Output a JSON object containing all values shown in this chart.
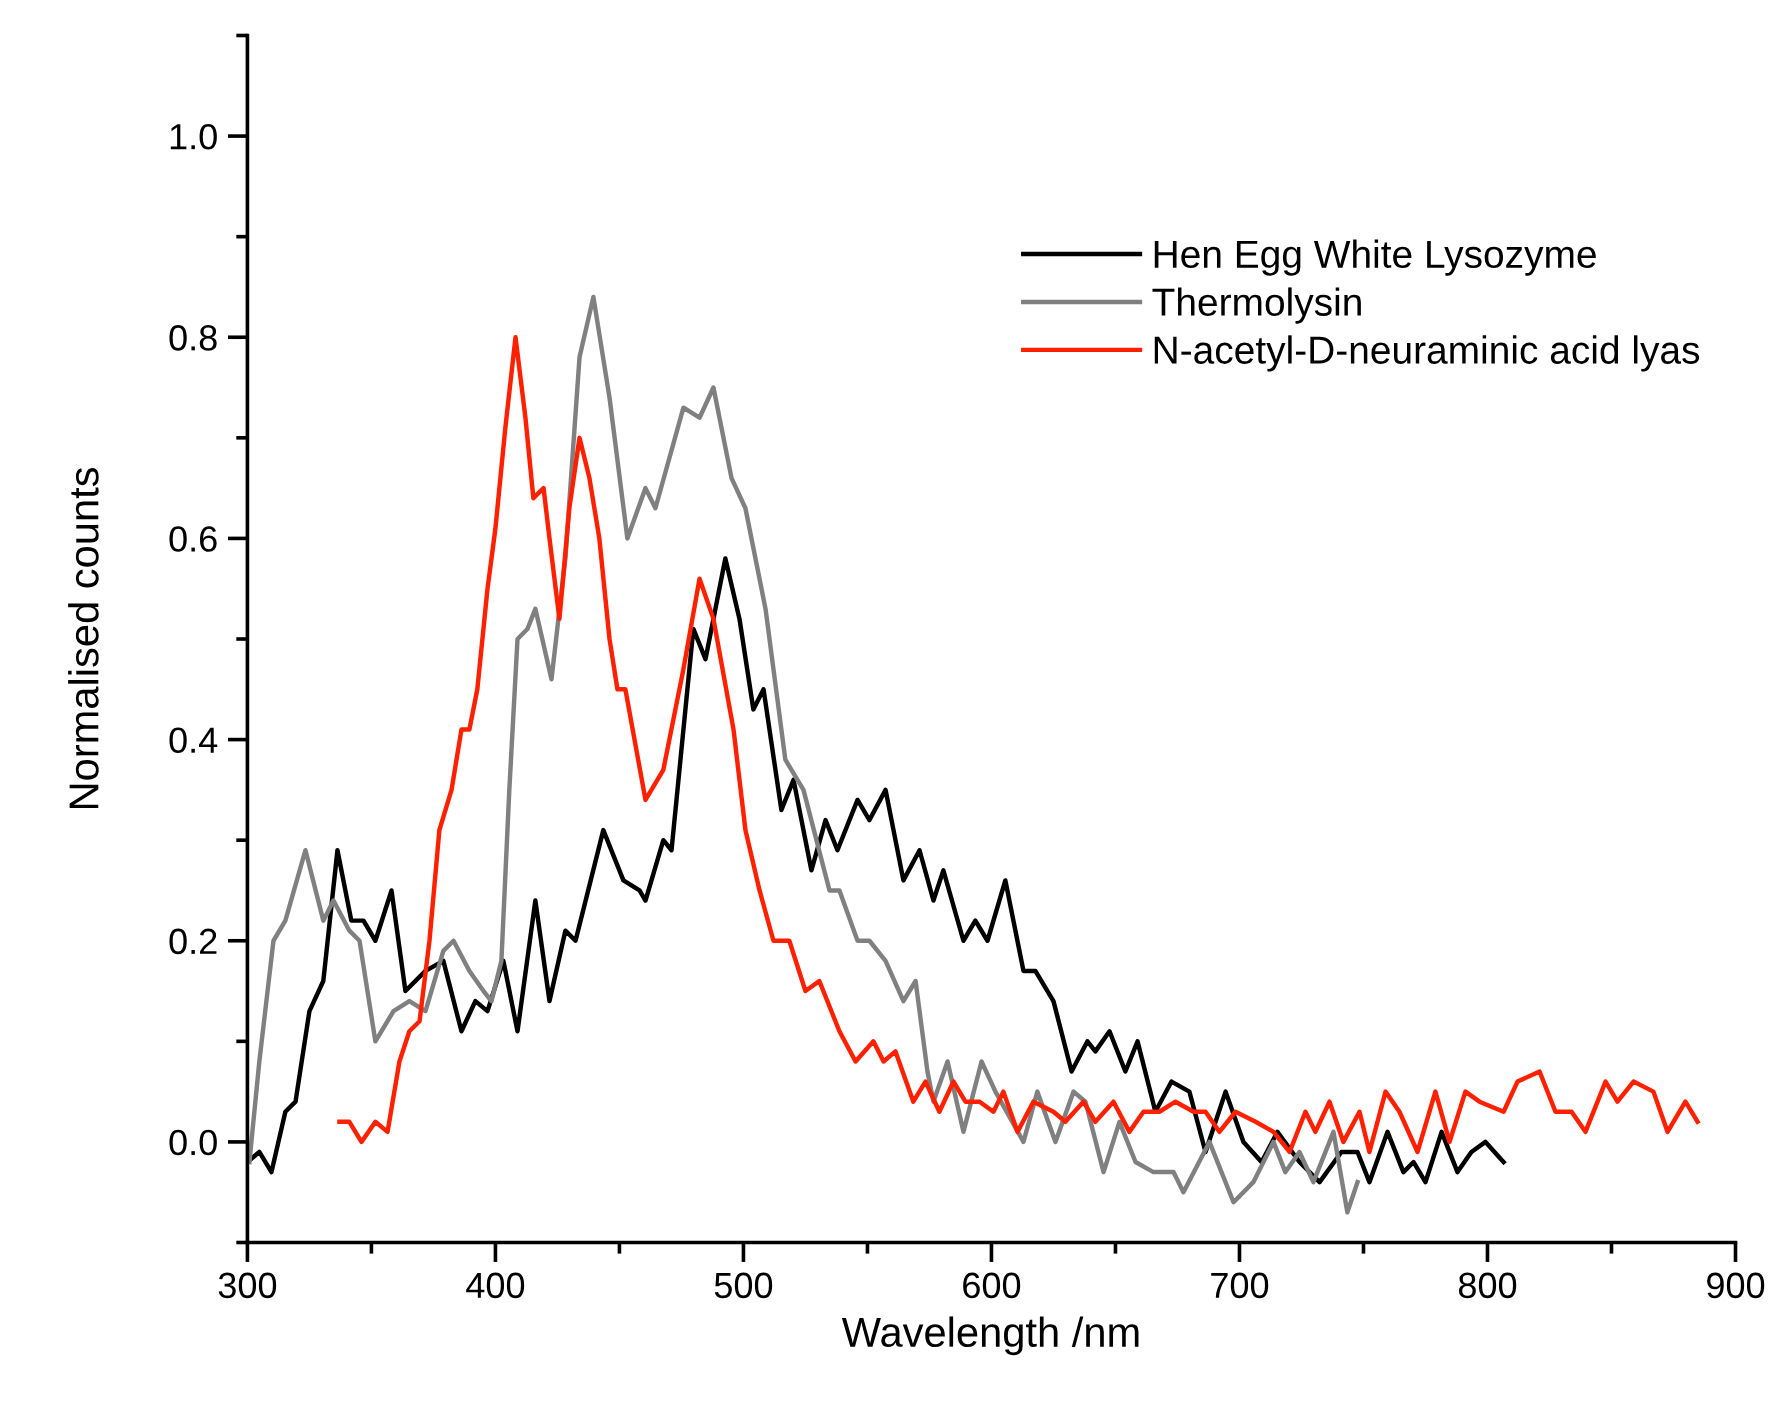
{
  "chart_data": {
    "type": "line",
    "xlabel": "Wavelength /nm",
    "ylabel": "Normalised counts",
    "xlim": [
      300,
      900
    ],
    "ylim": [
      -0.1,
      1.1
    ],
    "xticks": [
      300,
      {
        "value": 350,
        "label": null
      },
      400,
      {
        "value": 450,
        "label": null
      },
      500,
      {
        "value": 550,
        "label": null
      },
      600,
      {
        "value": 650,
        "label": null
      },
      700,
      {
        "value": 750,
        "label": null
      },
      800,
      {
        "value": 850,
        "label": null
      },
      900
    ],
    "yticks": [
      {
        "value": -0.1,
        "label": null
      },
      {
        "value": 0,
        "label": "0.0"
      },
      {
        "value": 0.1,
        "label": null
      },
      {
        "value": 0.2,
        "label": "0.2"
      },
      {
        "value": 0.3,
        "label": null
      },
      {
        "value": 0.4,
        "label": "0.4"
      },
      {
        "value": 0.5,
        "label": null
      },
      {
        "value": 0.6,
        "label": "0.6"
      },
      {
        "value": 0.7,
        "label": null
      },
      {
        "value": 0.8,
        "label": "0.8"
      },
      {
        "value": 0.9,
        "label": null
      },
      {
        "value": 1.0,
        "label": "1.0"
      },
      {
        "value": 1.1,
        "label": null
      }
    ],
    "grid": false,
    "legend": "top right",
    "marker": "none",
    "line_style": "solid",
    "series": [
      {
        "name": "Hen Egg White Lysozyme",
        "color": "#000000",
        "x": [
          300,
          304.8,
          309.7,
          315.3,
          319.4,
          325,
          330.6,
          336.3,
          341.9,
          346.8,
          351.6,
          358.1,
          363.7,
          371.8,
          379,
          386.3,
          391.9,
          396.8,
          403.2,
          408.9,
          416.1,
          421.8,
          428.2,
          432.3,
          443.5,
          451.6,
          458.1,
          460.5,
          467.7,
          471,
          479.8,
          484.7,
          492.7,
          498.4,
          504,
          508.1,
          515.3,
          520.2,
          527.4,
          533.1,
          537.9,
          546,
          550.8,
          557.3,
          564.5,
          571,
          576.6,
          580.6,
          588.7,
          593.5,
          598.4,
          605.6,
          612.9,
          617.7,
          625,
          632.3,
          638.7,
          641.9,
          647.6,
          654,
          658.9,
          666.1,
          672.6,
          679.8,
          686.3,
          694.4,
          701.6,
          708.9,
          715.3,
          724.2,
          732.3,
          741.1,
          747.6,
          752.4,
          759.7,
          766.1,
          770.2,
          775,
          781.5,
          787.9,
          793.5,
          799.2,
          806.5
        ],
        "values": [
          -0.02,
          -0.01,
          -0.03,
          0.03,
          0.04,
          0.13,
          0.16,
          0.29,
          0.22,
          0.22,
          0.2,
          0.25,
          0.15,
          0.17,
          0.18,
          0.11,
          0.14,
          0.13,
          0.18,
          0.11,
          0.24,
          0.14,
          0.21,
          0.2,
          0.31,
          0.26,
          0.25,
          0.24,
          0.3,
          0.29,
          0.51,
          0.48,
          0.58,
          0.52,
          0.43,
          0.45,
          0.33,
          0.36,
          0.27,
          0.32,
          0.29,
          0.34,
          0.32,
          0.35,
          0.26,
          0.29,
          0.24,
          0.27,
          0.2,
          0.22,
          0.2,
          0.26,
          0.17,
          0.17,
          0.14,
          0.07,
          0.1,
          0.09,
          0.11,
          0.07,
          0.1,
          0.03,
          0.06,
          0.05,
          -0.01,
          0.05,
          0.0,
          -0.02,
          0.01,
          -0.02,
          -0.04,
          -0.01,
          -0.01,
          -0.04,
          0.01,
          -0.03,
          -0.02,
          -0.04,
          0.01,
          -0.03,
          -0.01,
          0.0,
          -0.02
        ]
      },
      {
        "name": "Thermolysin",
        "color": "#808080",
        "x": [
          300.8,
          304.8,
          310.5,
          315.3,
          323.4,
          330.6,
          334.7,
          341.1,
          345.2,
          351.6,
          358.9,
          365.3,
          371.8,
          379,
          383.1,
          389.5,
          395.2,
          398.4,
          402.4,
          405.6,
          408.9,
          412.9,
          416.1,
          422.6,
          428.2,
          433.9,
          439.5,
          446,
          453.2,
          460.5,
          464.5,
          475.8,
          482.3,
          487.9,
          495.2,
          500.8,
          508.9,
          516.9,
          524.2,
          534.7,
          538.7,
          546,
          550.8,
          557.3,
          564.5,
          569.4,
          574.2,
          576.6,
          582.3,
          588.7,
          596,
          601.6,
          612.9,
          618.5,
          625.8,
          633.1,
          637.9,
          645.2,
          651.6,
          658.1,
          665.3,
          673.4,
          677.4,
          687.9,
          697.6,
          705.6,
          713.7,
          718.5,
          724.2,
          729.8,
          737.9,
          743.5,
          747.6
        ],
        "values": [
          -0.02,
          0.08,
          0.2,
          0.22,
          0.29,
          0.22,
          0.24,
          0.21,
          0.2,
          0.1,
          0.13,
          0.14,
          0.13,
          0.19,
          0.2,
          0.17,
          0.15,
          0.14,
          0.18,
          0.35,
          0.5,
          0.51,
          0.53,
          0.46,
          0.58,
          0.78,
          0.84,
          0.74,
          0.6,
          0.65,
          0.63,
          0.73,
          0.72,
          0.75,
          0.66,
          0.63,
          0.53,
          0.38,
          0.35,
          0.25,
          0.25,
          0.2,
          0.2,
          0.18,
          0.14,
          0.16,
          0.07,
          0.04,
          0.08,
          0.01,
          0.08,
          0.05,
          0.0,
          0.05,
          0.0,
          0.05,
          0.04,
          -0.03,
          0.02,
          -0.02,
          -0.03,
          -0.03,
          -0.05,
          0.0,
          -0.06,
          -0.04,
          0.0,
          -0.03,
          -0.01,
          -0.04,
          0.01,
          -0.07,
          -0.04
        ]
      },
      {
        "name": "N-acetyl-D-neuraminic acid lyas",
        "color": "#ff2000",
        "x": [
          337.1,
          341.1,
          346,
          351.6,
          356.5,
          361.3,
          365.3,
          369.4,
          373.4,
          377.4,
          382.3,
          386.3,
          389.5,
          392.7,
          396.8,
          400,
          404,
          408.1,
          412.1,
          415.3,
          419.4,
          421.8,
          425.8,
          429.8,
          433.9,
          437.9,
          441.9,
          446,
          449.2,
          452.4,
          460.5,
          467.7,
          475.8,
          482.3,
          487.9,
          496,
          500.8,
          506.5,
          512.1,
          518.5,
          525,
          530.6,
          538.7,
          545.2,
          552.4,
          556.5,
          561.3,
          568.5,
          573.4,
          579,
          584.7,
          589.5,
          595.2,
          600.8,
          604.8,
          610.5,
          616.9,
          625,
          629.8,
          637.1,
          641.9,
          649.2,
          655.6,
          661.3,
          667.7,
          674.2,
          681.5,
          686.3,
          691.9,
          698.4,
          706.5,
          713.7,
          720.2,
          726.6,
          730.6,
          736.3,
          741.9,
          748.4,
          752.4,
          758.9,
          764.5,
          771.8,
          779,
          784.7,
          791.1,
          796.8,
          806.5,
          812.1,
          821,
          827.4,
          833.9,
          839.5,
          847.6,
          852.4,
          858.9,
          866.9,
          872.6,
          879.8,
          884.7
        ],
        "values": [
          0.02,
          0.02,
          0.0,
          0.02,
          0.01,
          0.08,
          0.11,
          0.12,
          0.2,
          0.31,
          0.35,
          0.41,
          0.41,
          0.45,
          0.55,
          0.61,
          0.71,
          0.8,
          0.72,
          0.64,
          0.65,
          0.6,
          0.52,
          0.63,
          0.7,
          0.66,
          0.6,
          0.5,
          0.45,
          0.45,
          0.34,
          0.37,
          0.47,
          0.56,
          0.52,
          0.41,
          0.31,
          0.25,
          0.2,
          0.2,
          0.15,
          0.16,
          0.11,
          0.08,
          0.1,
          0.08,
          0.09,
          0.04,
          0.06,
          0.03,
          0.06,
          0.04,
          0.04,
          0.03,
          0.05,
          0.01,
          0.04,
          0.03,
          0.02,
          0.04,
          0.02,
          0.04,
          0.01,
          0.03,
          0.03,
          0.04,
          0.03,
          0.03,
          0.01,
          0.03,
          0.02,
          0.01,
          -0.01,
          0.03,
          0.01,
          0.04,
          0.0,
          0.03,
          -0.01,
          0.05,
          0.03,
          -0.01,
          0.05,
          0.0,
          0.05,
          0.04,
          0.03,
          0.06,
          0.07,
          0.03,
          0.03,
          0.01,
          0.06,
          0.04,
          0.06,
          0.05,
          0.01,
          0.04,
          0.02
        ]
      }
    ]
  }
}
